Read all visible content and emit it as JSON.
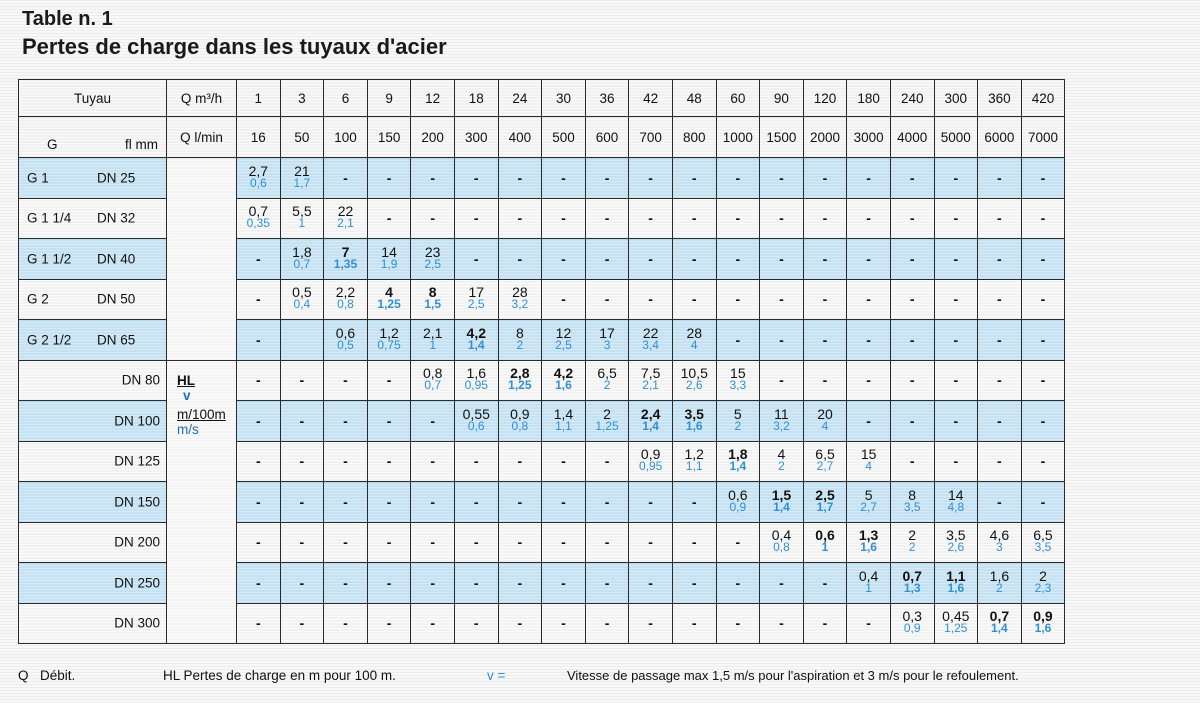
{
  "title": "Table n. 1",
  "subtitle": "Pertes de charge dans les tuyaux d'acier",
  "header": {
    "tuyau": "Tuyau",
    "g": "G",
    "fl_mm": "fl  mm",
    "q_m3h_label": "Q m³/h",
    "q_lmin_label": "Q l/min",
    "q_m3h": [
      "1",
      "3",
      "6",
      "9",
      "12",
      "18",
      "24",
      "30",
      "36",
      "42",
      "48",
      "60",
      "90",
      "120",
      "180",
      "240",
      "300",
      "360",
      "420"
    ],
    "q_lmin": [
      "16",
      "50",
      "100",
      "150",
      "200",
      "300",
      "400",
      "500",
      "600",
      "700",
      "800",
      "1000",
      "1500",
      "2000",
      "3000",
      "4000",
      "5000",
      "6000",
      "7000"
    ]
  },
  "legend": {
    "hl": "HL",
    "v": "v",
    "unit1": "m/100m",
    "unit2": "m/s"
  },
  "rows": [
    {
      "g": "G 1",
      "dn": "DN 25",
      "cells": [
        [
          "2,7",
          "0,6"
        ],
        [
          "21",
          "1,7"
        ],
        "-",
        "-",
        "-",
        "-",
        "-",
        "-",
        "-",
        "-",
        "-",
        "-",
        "-",
        "-",
        "-",
        "-",
        "-",
        "-",
        "-"
      ]
    },
    {
      "g": "G 1 1/4",
      "dn": "DN 32",
      "cells": [
        [
          "0,7",
          "0,35"
        ],
        [
          "5,5",
          "1"
        ],
        [
          "22",
          "2,1"
        ],
        "-",
        "-",
        "-",
        "-",
        "-",
        "-",
        "-",
        "-",
        "-",
        "-",
        "-",
        "-",
        "-",
        "-",
        "-",
        "-"
      ]
    },
    {
      "g": "G 1 1/2",
      "dn": "DN 40",
      "cells": [
        "-",
        [
          "1,8",
          "0,7"
        ],
        [
          "7",
          "1,35",
          "b"
        ],
        [
          "14",
          "1,9"
        ],
        [
          "23",
          "2,5"
        ],
        "-",
        "-",
        "-",
        "-",
        "-",
        "-",
        "-",
        "-",
        "-",
        "-",
        "-",
        "-",
        "-",
        "-"
      ]
    },
    {
      "g": "G 2",
      "dn": "DN 50",
      "cells": [
        "-",
        [
          "0,5",
          "0,4"
        ],
        [
          "2,2",
          "0,8"
        ],
        [
          "4",
          "1,25",
          "b"
        ],
        [
          "8",
          "1,5",
          "b"
        ],
        [
          "17",
          "2,5"
        ],
        [
          "28",
          "3,2"
        ],
        "-",
        "-",
        "-",
        "-",
        "-",
        "-",
        "-",
        "-",
        "-",
        "-",
        "-",
        "-"
      ]
    },
    {
      "g": "G 2 1/2",
      "dn": "DN 65",
      "cells": [
        "-",
        "",
        [
          "0,6",
          "0,5"
        ],
        [
          "1,2",
          "0,75"
        ],
        [
          "2,1",
          "1"
        ],
        [
          "4,2",
          "1,4",
          "b"
        ],
        [
          "8",
          "2"
        ],
        [
          "12",
          "2,5"
        ],
        [
          "17",
          "3"
        ],
        [
          "22",
          "3,4"
        ],
        [
          "28",
          "4"
        ],
        "-",
        "-",
        "-",
        "-",
        "-",
        "-",
        "-",
        "-"
      ]
    },
    {
      "g": "",
      "dn": "DN 80",
      "cells": [
        "-",
        "-",
        "-",
        "-",
        [
          "0,8",
          "0,7"
        ],
        [
          "1,6",
          "0,95"
        ],
        [
          "2,8",
          "1,25",
          "b"
        ],
        [
          "4,2",
          "1,6",
          "b"
        ],
        [
          "6,5",
          "2"
        ],
        [
          "7,5",
          "2,1"
        ],
        [
          "10,5",
          "2,6"
        ],
        [
          "15",
          "3,3"
        ],
        "-",
        "-",
        "-",
        "-",
        "-",
        "-",
        "-"
      ]
    },
    {
      "g": "",
      "dn": "DN 100",
      "cells": [
        "-",
        "-",
        "-",
        "-",
        "-",
        [
          "0,55",
          "0,6"
        ],
        [
          "0,9",
          "0,8"
        ],
        [
          "1,4",
          "1,1"
        ],
        [
          "2",
          "1,25"
        ],
        [
          "2,4",
          "1,4",
          "b"
        ],
        [
          "3,5",
          "1,6",
          "b"
        ],
        [
          "5",
          "2"
        ],
        [
          "11",
          "3,2"
        ],
        [
          "20",
          "4"
        ],
        "-",
        "-",
        "-",
        "-",
        "-"
      ]
    },
    {
      "g": "",
      "dn": "DN 125",
      "cells": [
        "-",
        "-",
        "-",
        "-",
        "-",
        "-",
        "-",
        "-",
        "-",
        [
          "0,9",
          "0,95"
        ],
        [
          "1,2",
          "1,1"
        ],
        [
          "1,8",
          "1,4",
          "b"
        ],
        [
          "4",
          "2"
        ],
        [
          "6,5",
          "2,7"
        ],
        [
          "15",
          "4"
        ],
        "-",
        "-",
        "-",
        "-"
      ]
    },
    {
      "g": "",
      "dn": "DN 150",
      "cells": [
        "-",
        "-",
        "-",
        "-",
        "-",
        "-",
        "-",
        "-",
        "-",
        "-",
        "-",
        [
          "0,6",
          "0,9"
        ],
        [
          "1,5",
          "1,4",
          "b"
        ],
        [
          "2,5",
          "1,7",
          "b"
        ],
        [
          "5",
          "2,7"
        ],
        [
          "8",
          "3,5"
        ],
        [
          "14",
          "4,8"
        ],
        "-",
        "-"
      ]
    },
    {
      "g": "",
      "dn": "DN 200",
      "cells": [
        "-",
        "-",
        "-",
        "-",
        "-",
        "-",
        "-",
        "-",
        "-",
        "-",
        "-",
        "-",
        [
          "0,4",
          "0,8"
        ],
        [
          "0,6",
          "1",
          "b"
        ],
        [
          "1,3",
          "1,6",
          "b"
        ],
        [
          "2",
          "2"
        ],
        [
          "3,5",
          "2,6"
        ],
        [
          "4,6",
          "3"
        ],
        [
          "6,5",
          "3,5"
        ]
      ]
    },
    {
      "g": "",
      "dn": "DN 250",
      "cells": [
        "-",
        "-",
        "-",
        "-",
        "-",
        "-",
        "-",
        "-",
        "-",
        "-",
        "-",
        "-",
        "-",
        "-",
        [
          "0,4",
          "1"
        ],
        [
          "0,7",
          "1,3",
          "b"
        ],
        [
          "1,1",
          "1,6",
          "b"
        ],
        [
          "1,6",
          "2"
        ],
        [
          "2",
          "2,3"
        ]
      ]
    },
    {
      "g": "",
      "dn": "DN 300",
      "cells": [
        "-",
        "-",
        "-",
        "-",
        "-",
        "-",
        "-",
        "-",
        "-",
        "-",
        "-",
        "-",
        "-",
        "-",
        "-",
        [
          "0,3",
          "0,9"
        ],
        [
          "0,45",
          "1,25"
        ],
        [
          "0,7",
          "1,4",
          "b"
        ],
        [
          "0,9",
          "1,6",
          "b"
        ]
      ]
    }
  ],
  "footer": {
    "q": "Q",
    "q_text": "Débit.",
    "hl_text": "HL  Pertes de charge en m pour 100 m.",
    "v_text": "v =",
    "vitesse_text": "Vitesse de passage max 1,5 m/s pour l'aspiration et 3 m/s pour le refoulement."
  }
}
